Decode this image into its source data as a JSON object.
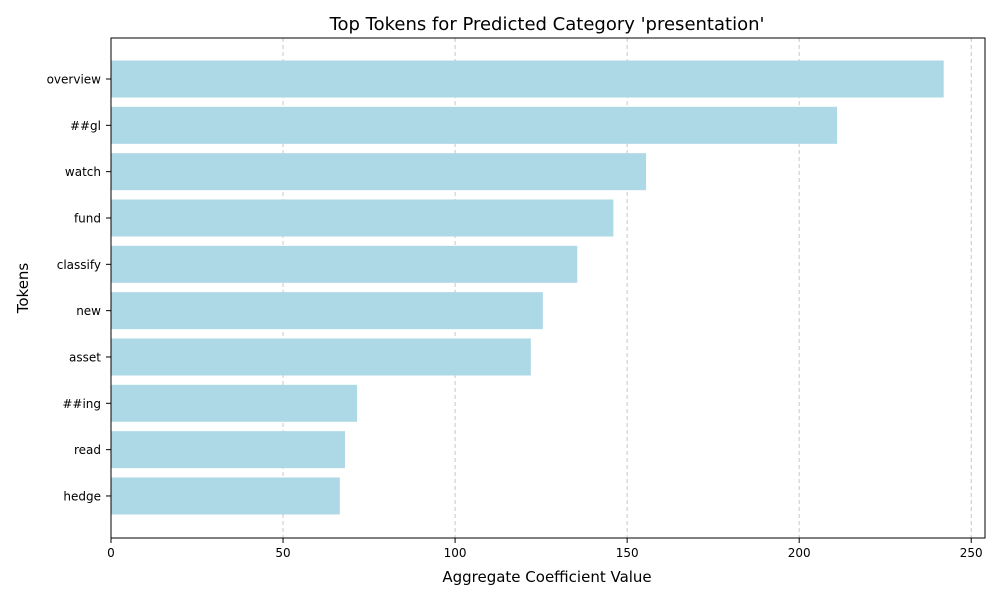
{
  "chart_data": {
    "type": "bar",
    "orientation": "horizontal",
    "title": "Top Tokens for Predicted Category 'presentation'",
    "xlabel": "Aggregate Coefficient Value",
    "ylabel": "Tokens",
    "categories": [
      "overview",
      "##gl",
      "watch",
      "fund",
      "classify",
      "new",
      "asset",
      "##ing",
      "read",
      "hedge"
    ],
    "values": [
      242,
      211,
      155.5,
      146,
      135.5,
      125.5,
      122,
      71.5,
      68,
      66.5
    ],
    "xlim": [
      0,
      254
    ],
    "xticks": [
      0,
      50,
      100,
      150,
      200,
      250
    ],
    "grid": "x-dashed",
    "bar_color": "#add8e6"
  }
}
